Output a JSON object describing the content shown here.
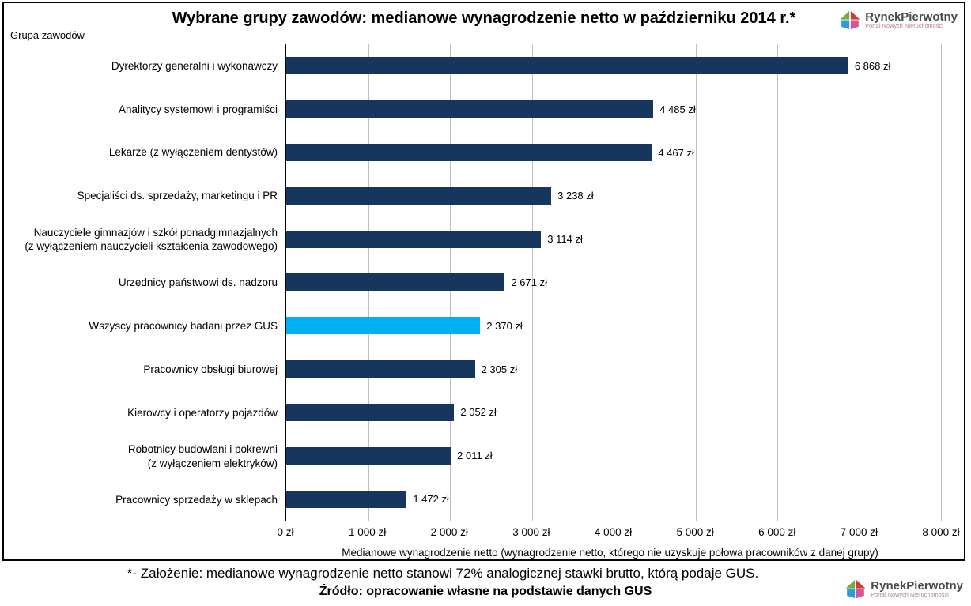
{
  "title": "Wybrane grupy zawodów: medianowe wynagrodzenie netto w październiku 2014 r.*",
  "y_axis_header": "Grupa zawodów",
  "logo": {
    "name": "RynekPierwotny",
    "subtitle": "Portal Nowych Nieruchomości"
  },
  "chart_data": {
    "type": "bar",
    "orientation": "horizontal",
    "title": "Wybrane grupy zawodów: medianowe wynagrodzenie netto w październiku 2014 r.*",
    "categories": [
      "Dyrektorzy generalni i wykonawczy",
      "Analitycy systemowi i programiści",
      "Lekarze (z wyłączeniem dentystów)",
      "Specjaliści ds. sprzedaży, marketingu i PR",
      "Nauczyciele gimnazjów i szkół ponadgimnazjalnych\n(z wyłączeniem nauczycieli kształcenia zawodowego)",
      "Urzędnicy państwowi ds. nadzoru",
      "Wszyscy pracownicy badani przez GUS",
      "Pracownicy obsługi biurowej",
      "Kierowcy i operatorzy pojazdów",
      "Robotnicy budowlani i pokrewni\n(z wyłączeniem elektryków)",
      "Pracownicy sprzedaży w sklepach"
    ],
    "values": [
      6868,
      4485,
      4467,
      3238,
      3114,
      2671,
      2370,
      2305,
      2052,
      2011,
      1472
    ],
    "value_labels": [
      "6 868 zł",
      "4 485 zł",
      "4 467 zł",
      "3 238 zł",
      "3 114 zł",
      "2 671 zł",
      "2 370 zł",
      "2 305 zł",
      "2 052 zł",
      "2 011 zł",
      "1 472 zł"
    ],
    "highlight_index": 6,
    "xlim": [
      0,
      8000
    ],
    "x_tick_step": 1000,
    "x_ticks": [
      "0 zł",
      "1 000 zł",
      "2 000 zł",
      "3 000 zł",
      "4 000 zł",
      "5 000 zł",
      "6 000 zł",
      "7 000 zł",
      "8 000 zł"
    ],
    "xlabel": "Medianowe wynagrodzenie netto (wynagrodzenie netto, którego nie uzyskuje połowa pracowników z danej grupy)",
    "ylabel": "Grupa zawodów",
    "bar_color": "#17365D",
    "highlight_color": "#00B0F0",
    "grid": true,
    "legend": false
  },
  "footnote": "*- Założenie: medianowe wynagrodzenie netto stanowi 72% analogicznej stawki brutto, którą podaje GUS.",
  "source": "Źródło: opracowanie własne na podstawie danych GUS"
}
